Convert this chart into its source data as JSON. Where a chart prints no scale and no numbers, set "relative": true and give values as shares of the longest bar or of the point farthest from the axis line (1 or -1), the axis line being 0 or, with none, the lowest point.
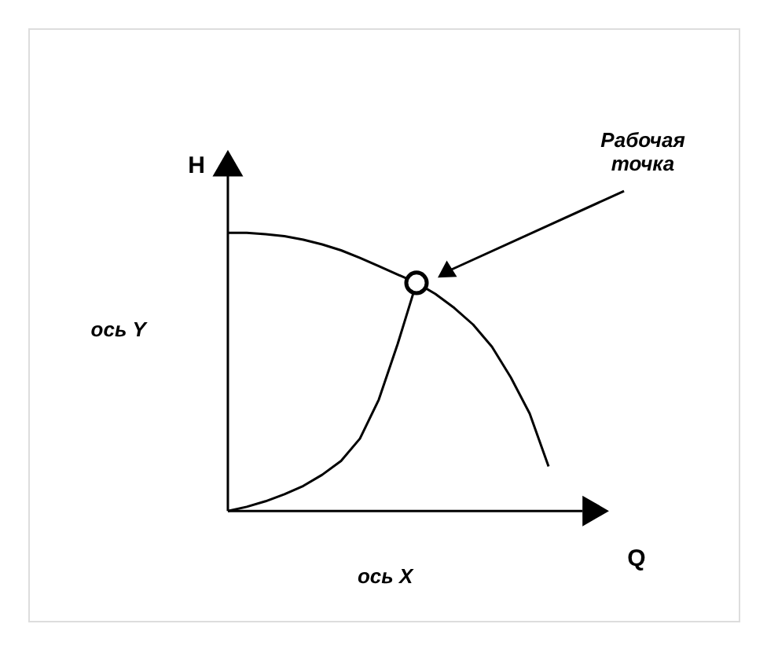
{
  "chart_data": {
    "type": "line",
    "relative": true,
    "xlabel": "Q",
    "ylabel": "H",
    "grid": false,
    "categories": [
      null,
      null,
      null,
      null,
      null,
      null,
      null,
      null,
      null,
      null,
      null,
      null,
      null,
      null,
      null,
      null,
      null,
      null
    ],
    "series": [
      {
        "color": "#000000",
        "values": [
          1.0,
          1.0,
          0.995,
          0.988,
          0.975,
          0.958,
          0.937,
          0.91,
          0.88,
          0.85,
          0.82,
          0.78,
          0.73,
          0.67,
          0.59,
          0.48,
          0.35,
          0.16
        ]
      },
      {
        "color": "#000000",
        "values": [
          0,
          0.015,
          0.035,
          0.06,
          0.09,
          0.13,
          0.18,
          0.26,
          0.4,
          0.6,
          0.82,
          null,
          null,
          null,
          null,
          null,
          null,
          null
        ]
      }
    ],
    "annotations": [
      "ось Y",
      "ось X",
      "Рабочая точка"
    ]
  }
}
